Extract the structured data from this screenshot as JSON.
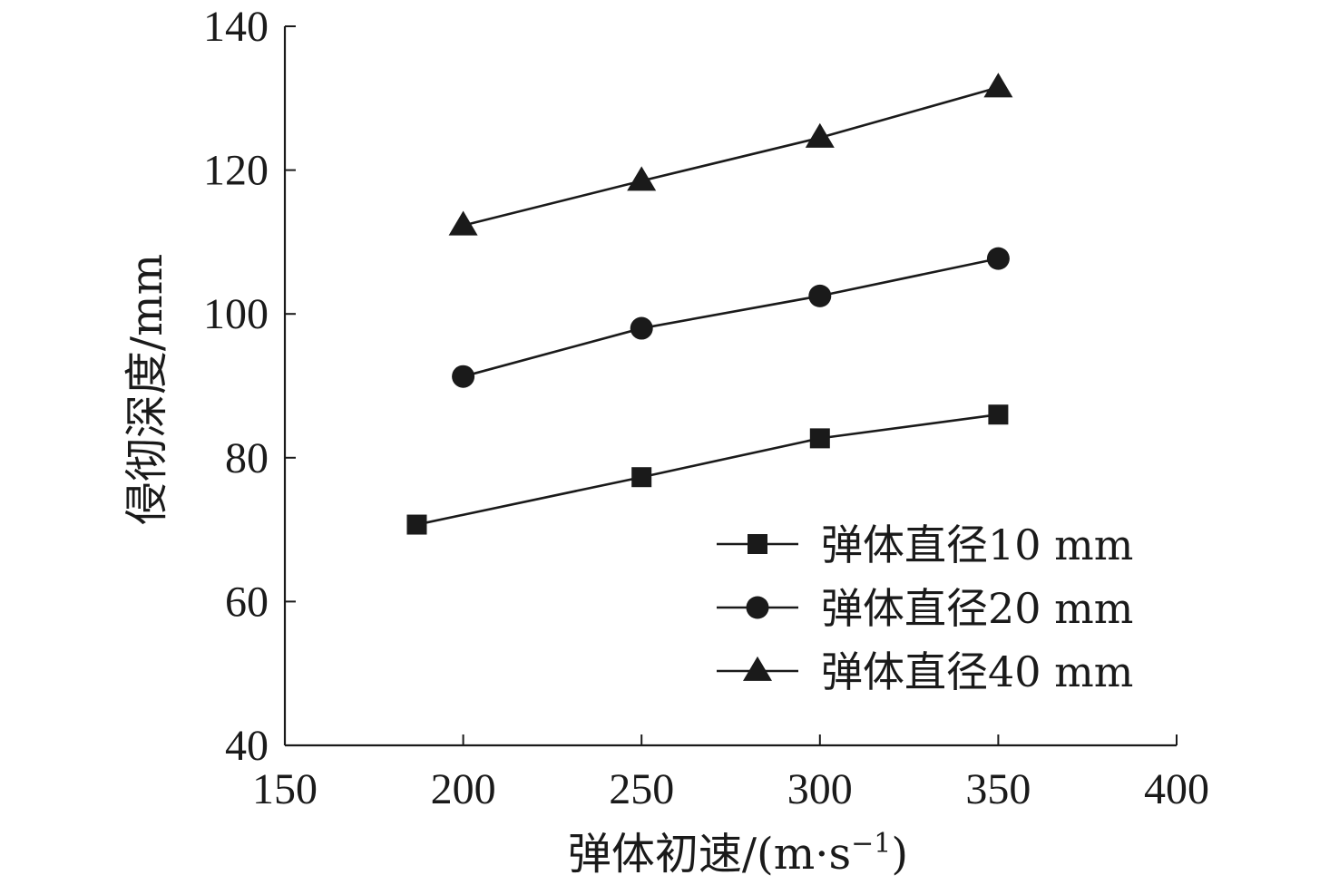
{
  "chart_data": {
    "type": "line",
    "xlabel": "弹体初速/(m·s",
    "xlabel_sup": "−1",
    "xlabel_tail": ")",
    "ylabel": "侵彻深度/mm",
    "xlim": [
      150,
      400
    ],
    "ylim": [
      40,
      140
    ],
    "xticks": [
      150,
      200,
      250,
      300,
      350,
      400
    ],
    "yticks": [
      40,
      60,
      80,
      100,
      120,
      140
    ],
    "grid": false,
    "legend_position": "bottom-right",
    "series": [
      {
        "name": "弹体直径10 mm",
        "marker": "square",
        "x": [
          187,
          250,
          300,
          350
        ],
        "y": [
          70.7,
          77.3,
          82.7,
          86.0
        ]
      },
      {
        "name": "弹体直径20 mm",
        "marker": "circle",
        "x": [
          200,
          250,
          300,
          350
        ],
        "y": [
          91.3,
          98.0,
          102.5,
          107.7
        ]
      },
      {
        "name": "弹体直径40 mm",
        "marker": "triangle",
        "x": [
          200,
          250,
          300,
          350
        ],
        "y": [
          112.3,
          118.5,
          124.5,
          131.5
        ]
      }
    ]
  }
}
